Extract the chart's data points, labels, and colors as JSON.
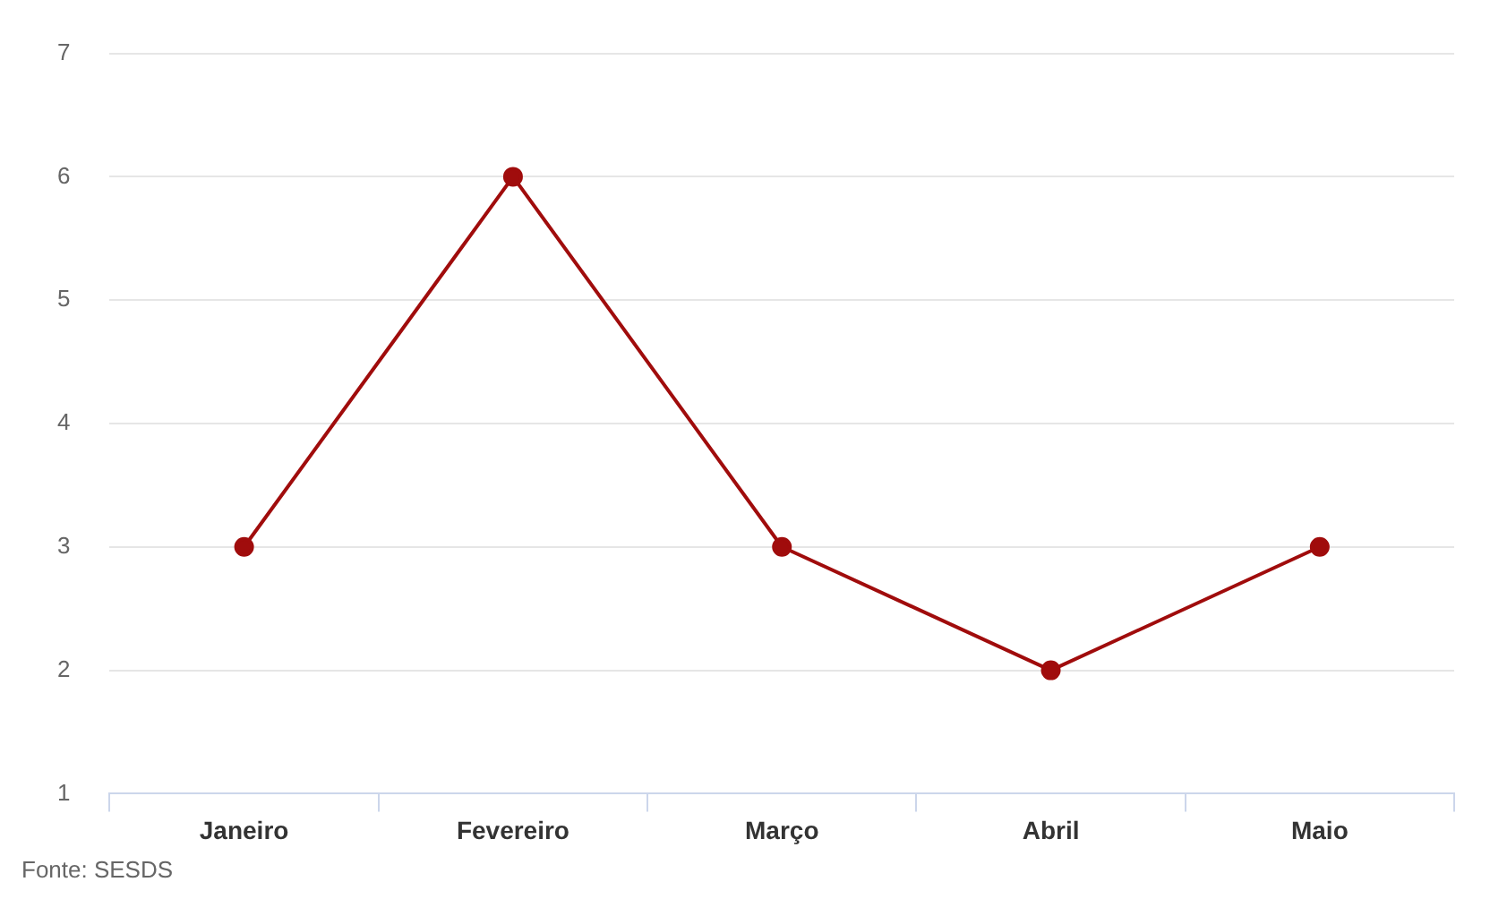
{
  "chart_data": {
    "type": "line",
    "categories": [
      "Janeiro",
      "Fevereiro",
      "Março",
      "Abril",
      "Maio"
    ],
    "series": [
      {
        "color": "#a00c0c",
        "values": [
          3,
          6,
          3,
          2,
          3
        ]
      }
    ],
    "ylim": [
      1,
      7
    ],
    "yticks": [
      1,
      2,
      3,
      4,
      5,
      6,
      7
    ],
    "grid": "y",
    "legend": false,
    "marker": "circle",
    "line_style": "solid",
    "annotations": [
      "Fonte: SESDS"
    ]
  }
}
